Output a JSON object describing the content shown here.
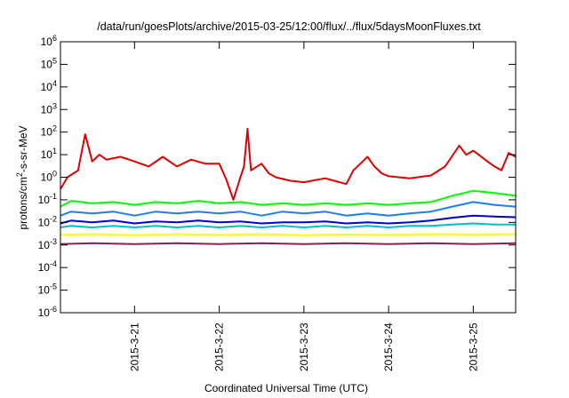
{
  "chart_data": {
    "type": "line",
    "title": "/data/run/goesPlots/archive/2015-03-25/12:00/flux/../flux/5daysMoonFluxes.txt",
    "xlabel": "Coordinated Universal Time (UTC)",
    "ylabel_parts": {
      "base": "protons/cm",
      "sup": "2",
      "rest": "-s-sr-MeV"
    },
    "y_scale": "log",
    "ylim": [
      1e-06,
      1000000.0
    ],
    "y_ticks": [
      {
        "value": -6,
        "base": "10",
        "exp": "-6"
      },
      {
        "value": -5,
        "base": "10",
        "exp": "-5"
      },
      {
        "value": -4,
        "base": "10",
        "exp": "-4"
      },
      {
        "value": -3,
        "base": "10",
        "exp": "-3"
      },
      {
        "value": -2,
        "base": "10",
        "exp": "-2"
      },
      {
        "value": -1,
        "base": "10",
        "exp": "-1"
      },
      {
        "value": 0,
        "base": "10",
        "exp": "0"
      },
      {
        "value": 1,
        "base": "10",
        "exp": "1"
      },
      {
        "value": 2,
        "base": "10",
        "exp": "2"
      },
      {
        "value": 3,
        "base": "10",
        "exp": "3"
      },
      {
        "value": 4,
        "base": "10",
        "exp": "4"
      },
      {
        "value": 5,
        "base": "10",
        "exp": "5"
      },
      {
        "value": 6,
        "base": "10",
        "exp": "6"
      }
    ],
    "xlim": [
      "2015-03-20 03:00",
      "2015-03-25 12:00"
    ],
    "x_ticks": [
      "2015-3-21",
      "2015-3-22",
      "2015-3-23",
      "2015-3-24",
      "2015-3-25"
    ],
    "grid": false,
    "series": [
      {
        "color": "#e00000",
        "x": [
          "2015-03-20 03:00",
          "2015-03-20 05:00",
          "2015-03-20 08:00",
          "2015-03-20 10:00",
          "2015-03-20 12:00",
          "2015-03-20 14:00",
          "2015-03-20 16:00",
          "2015-03-20 20:00",
          "2015-03-21 00:00",
          "2015-03-21 04:00",
          "2015-03-21 08:00",
          "2015-03-21 12:00",
          "2015-03-21 16:00",
          "2015-03-21 20:00",
          "2015-03-22 00:00",
          "2015-03-22 02:00",
          "2015-03-22 04:00",
          "2015-03-22 06:00",
          "2015-03-22 07:00",
          "2015-03-22 08:00",
          "2015-03-22 09:00",
          "2015-03-22 12:00",
          "2015-03-22 14:00",
          "2015-03-22 16:00",
          "2015-03-22 20:00",
          "2015-03-23 00:00",
          "2015-03-23 06:00",
          "2015-03-23 12:00",
          "2015-03-23 14:00",
          "2015-03-23 16:00",
          "2015-03-23 18:00",
          "2015-03-23 20:00",
          "2015-03-23 22:00",
          "2015-03-24 00:00",
          "2015-03-24 06:00",
          "2015-03-24 12:00",
          "2015-03-24 16:00",
          "2015-03-24 20:00",
          "2015-03-24 22:00",
          "2015-03-25 00:00",
          "2015-03-25 04:00",
          "2015-03-25 06:00",
          "2015-03-25 08:00",
          "2015-03-25 10:00",
          "2015-03-25 12:00"
        ],
        "y": [
          0.3,
          1,
          2,
          80,
          5,
          10,
          6,
          8,
          5,
          3,
          8,
          3,
          6,
          4,
          4,
          0.8,
          0.1,
          1,
          3,
          140,
          2,
          4,
          1.5,
          1,
          0.7,
          0.6,
          0.9,
          0.5,
          2,
          4,
          8,
          3,
          1.5,
          1.1,
          0.9,
          1.2,
          3,
          25,
          10,
          15,
          5,
          3,
          2,
          12,
          8
        ]
      },
      {
        "color": "#00ff00",
        "x": [
          "2015-03-20 03:00",
          "2015-03-20 06:00",
          "2015-03-20 12:00",
          "2015-03-20 18:00",
          "2015-03-21 00:00",
          "2015-03-21 06:00",
          "2015-03-21 12:00",
          "2015-03-21 18:00",
          "2015-03-22 00:00",
          "2015-03-22 06:00",
          "2015-03-22 12:00",
          "2015-03-22 18:00",
          "2015-03-23 00:00",
          "2015-03-23 06:00",
          "2015-03-23 12:00",
          "2015-03-23 18:00",
          "2015-03-24 00:00",
          "2015-03-24 06:00",
          "2015-03-24 12:00",
          "2015-03-24 18:00",
          "2015-03-25 00:00",
          "2015-03-25 06:00",
          "2015-03-25 12:00"
        ],
        "y": [
          0.05,
          0.09,
          0.07,
          0.08,
          0.06,
          0.08,
          0.07,
          0.09,
          0.07,
          0.08,
          0.06,
          0.07,
          0.06,
          0.07,
          0.06,
          0.07,
          0.06,
          0.07,
          0.08,
          0.15,
          0.25,
          0.2,
          0.15
        ]
      },
      {
        "color": "#1e7cff",
        "x": [
          "2015-03-20 03:00",
          "2015-03-20 06:00",
          "2015-03-20 12:00",
          "2015-03-20 18:00",
          "2015-03-21 00:00",
          "2015-03-21 06:00",
          "2015-03-21 12:00",
          "2015-03-21 18:00",
          "2015-03-22 00:00",
          "2015-03-22 06:00",
          "2015-03-22 12:00",
          "2015-03-22 18:00",
          "2015-03-23 00:00",
          "2015-03-23 06:00",
          "2015-03-23 12:00",
          "2015-03-23 18:00",
          "2015-03-24 00:00",
          "2015-03-24 06:00",
          "2015-03-24 12:00",
          "2015-03-24 18:00",
          "2015-03-25 00:00",
          "2015-03-25 06:00",
          "2015-03-25 12:00"
        ],
        "y": [
          0.02,
          0.03,
          0.025,
          0.03,
          0.02,
          0.03,
          0.025,
          0.03,
          0.025,
          0.03,
          0.02,
          0.03,
          0.025,
          0.03,
          0.02,
          0.025,
          0.02,
          0.025,
          0.03,
          0.05,
          0.08,
          0.06,
          0.05
        ]
      },
      {
        "color": "#0000d0",
        "x": [
          "2015-03-20 03:00",
          "2015-03-20 06:00",
          "2015-03-20 12:00",
          "2015-03-20 18:00",
          "2015-03-21 00:00",
          "2015-03-21 06:00",
          "2015-03-21 12:00",
          "2015-03-21 18:00",
          "2015-03-22 00:00",
          "2015-03-22 06:00",
          "2015-03-22 12:00",
          "2015-03-22 18:00",
          "2015-03-23 00:00",
          "2015-03-23 06:00",
          "2015-03-23 12:00",
          "2015-03-23 18:00",
          "2015-03-24 00:00",
          "2015-03-24 06:00",
          "2015-03-24 12:00",
          "2015-03-24 18:00",
          "2015-03-25 00:00",
          "2015-03-25 06:00",
          "2015-03-25 12:00"
        ],
        "y": [
          0.009,
          0.012,
          0.01,
          0.012,
          0.009,
          0.011,
          0.01,
          0.012,
          0.01,
          0.011,
          0.009,
          0.01,
          0.01,
          0.011,
          0.009,
          0.01,
          0.009,
          0.01,
          0.012,
          0.016,
          0.02,
          0.018,
          0.017
        ]
      },
      {
        "color": "#00c0c0",
        "x": [
          "2015-03-20 03:00",
          "2015-03-20 06:00",
          "2015-03-20 12:00",
          "2015-03-20 18:00",
          "2015-03-21 00:00",
          "2015-03-21 06:00",
          "2015-03-21 12:00",
          "2015-03-21 18:00",
          "2015-03-22 00:00",
          "2015-03-22 06:00",
          "2015-03-22 12:00",
          "2015-03-22 18:00",
          "2015-03-23 00:00",
          "2015-03-23 06:00",
          "2015-03-23 12:00",
          "2015-03-23 18:00",
          "2015-03-24 00:00",
          "2015-03-24 06:00",
          "2015-03-24 12:00",
          "2015-03-24 18:00",
          "2015-03-25 00:00",
          "2015-03-25 06:00",
          "2015-03-25 12:00"
        ],
        "y": [
          0.006,
          0.007,
          0.006,
          0.007,
          0.006,
          0.007,
          0.006,
          0.007,
          0.006,
          0.007,
          0.006,
          0.007,
          0.006,
          0.007,
          0.006,
          0.007,
          0.006,
          0.007,
          0.007,
          0.008,
          0.009,
          0.008,
          0.008
        ]
      },
      {
        "color": "#ffff00",
        "x": [
          "2015-03-20 03:00",
          "2015-03-20 12:00",
          "2015-03-21 00:00",
          "2015-03-21 12:00",
          "2015-03-22 00:00",
          "2015-03-22 12:00",
          "2015-03-23 00:00",
          "2015-03-23 12:00",
          "2015-03-24 00:00",
          "2015-03-24 12:00",
          "2015-03-25 00:00",
          "2015-03-25 12:00"
        ],
        "y": [
          0.0028,
          0.003,
          0.0027,
          0.003,
          0.0028,
          0.003,
          0.0027,
          0.0029,
          0.0028,
          0.003,
          0.0029,
          0.003
        ]
      },
      {
        "color": "#8b2252",
        "x": [
          "2015-03-20 03:00",
          "2015-03-20 12:00",
          "2015-03-21 00:00",
          "2015-03-21 12:00",
          "2015-03-22 00:00",
          "2015-03-22 12:00",
          "2015-03-23 00:00",
          "2015-03-23 12:00",
          "2015-03-24 00:00",
          "2015-03-24 12:00",
          "2015-03-25 00:00",
          "2015-03-25 12:00"
        ],
        "y": [
          0.0011,
          0.0012,
          0.0011,
          0.0012,
          0.0011,
          0.0012,
          0.0011,
          0.0012,
          0.0011,
          0.0012,
          0.0011,
          0.0012
        ]
      }
    ]
  }
}
